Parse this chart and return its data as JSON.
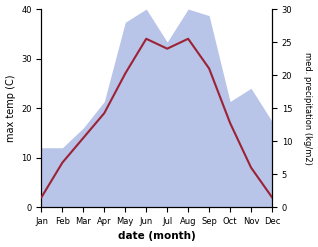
{
  "months": [
    "Jan",
    "Feb",
    "Mar",
    "Apr",
    "May",
    "Jun",
    "Jul",
    "Aug",
    "Sep",
    "Oct",
    "Nov",
    "Dec"
  ],
  "temperature": [
    2,
    9,
    14,
    19,
    27,
    34,
    32,
    34,
    28,
    17,
    8,
    2
  ],
  "precipitation": [
    9,
    9,
    12,
    16,
    28,
    30,
    25,
    30,
    29,
    16,
    18,
    13
  ],
  "temp_color": "#9b2335",
  "precip_color_fill": "#b8c4e8",
  "ylabel_left": "max temp (C)",
  "ylabel_right": "med. precipitation (kg/m2)",
  "xlabel": "date (month)",
  "ylim_left": [
    0,
    40
  ],
  "ylim_right": [
    0,
    30
  ],
  "yticks_left": [
    0,
    10,
    20,
    30,
    40
  ],
  "yticks_right": [
    0,
    5,
    10,
    15,
    20,
    25,
    30
  ],
  "bg_color": "#ffffff",
  "fig_bg": "#ffffff"
}
